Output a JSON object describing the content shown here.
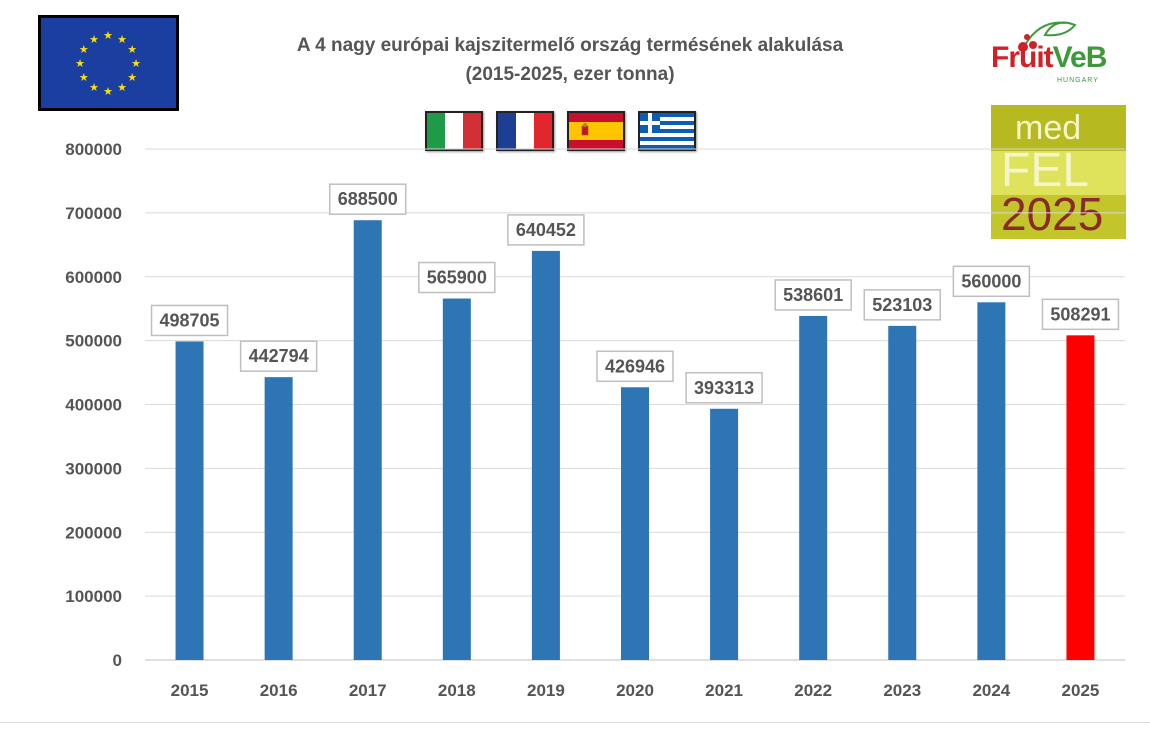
{
  "chart_data": {
    "type": "bar",
    "title": "A 4 nagy európai kajszitermelő ország termésének alakulása",
    "subtitle": "(2015-2025, ezer tonna)",
    "categories": [
      "2015",
      "2016",
      "2017",
      "2018",
      "2019",
      "2020",
      "2021",
      "2022",
      "2023",
      "2024",
      "2025"
    ],
    "values": [
      498705,
      442794,
      688500,
      565900,
      640452,
      426946,
      393313,
      538601,
      523103,
      560000,
      508291
    ],
    "bar_colors": [
      "#2e75b6",
      "#2e75b6",
      "#2e75b6",
      "#2e75b6",
      "#2e75b6",
      "#2e75b6",
      "#2e75b6",
      "#2e75b6",
      "#2e75b6",
      "#2e75b6",
      "#ff0000"
    ],
    "ylim": [
      0,
      800000
    ],
    "yticks": [
      0,
      100000,
      200000,
      300000,
      400000,
      500000,
      600000,
      700000,
      800000
    ],
    "grid": true,
    "xlabel": "",
    "ylabel": ""
  },
  "logos": {
    "eu_flag": "eu-flag",
    "country_flags": [
      "italy-flag",
      "france-flag",
      "spain-flag",
      "greece-flag"
    ],
    "fruitveb": {
      "word_a": "Fruit",
      "word_b": "VeB",
      "sub": "HUNGARY"
    },
    "medfel": {
      "line1": "med",
      "line2": "FEL",
      "year": "2025"
    }
  },
  "colors": {
    "bar": "#2e75b6",
    "highlight_bar": "#ff0000",
    "grid": "#d9d9d9",
    "text": "#555555"
  }
}
